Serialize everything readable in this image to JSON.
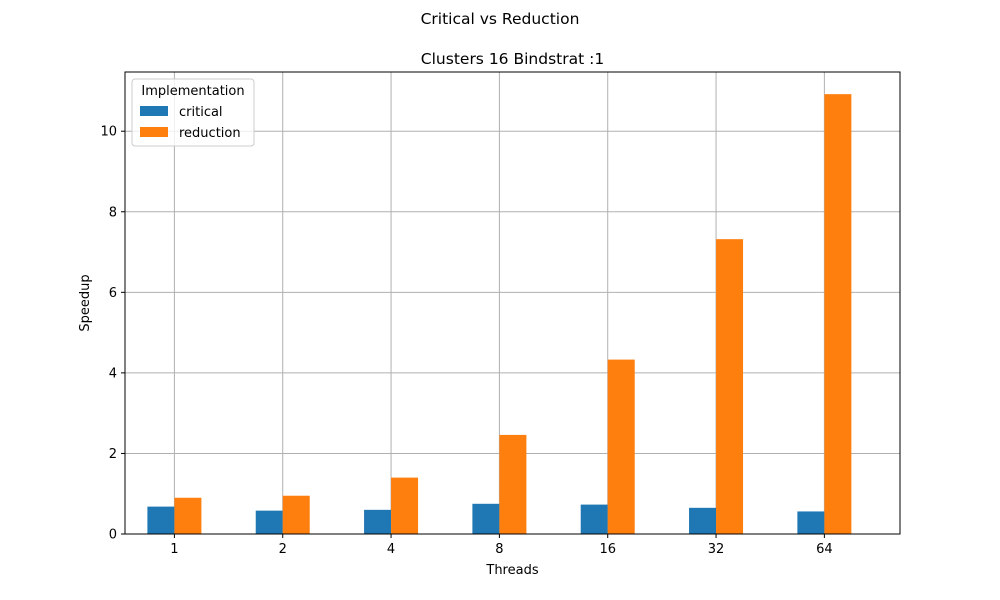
{
  "suptitle": "Critical vs Reduction",
  "chart_data": {
    "type": "bar",
    "title": "Clusters 16 Bindstrat :1",
    "xlabel": "Threads",
    "ylabel": "Speedup",
    "categories": [
      "1",
      "2",
      "4",
      "8",
      "16",
      "32",
      "64"
    ],
    "series": [
      {
        "name": "critical",
        "color": "#1f77b4",
        "values": [
          0.68,
          0.58,
          0.6,
          0.75,
          0.73,
          0.65,
          0.56
        ]
      },
      {
        "name": "reduction",
        "color": "#ff7f0e",
        "values": [
          0.9,
          0.95,
          1.4,
          2.46,
          4.33,
          7.32,
          10.92
        ]
      }
    ],
    "ylim": [
      0,
      11.47
    ],
    "yticks": [
      0,
      2,
      4,
      6,
      8,
      10
    ],
    "grid": true,
    "legend": {
      "title": "Implementation",
      "placement": "top-left"
    }
  }
}
